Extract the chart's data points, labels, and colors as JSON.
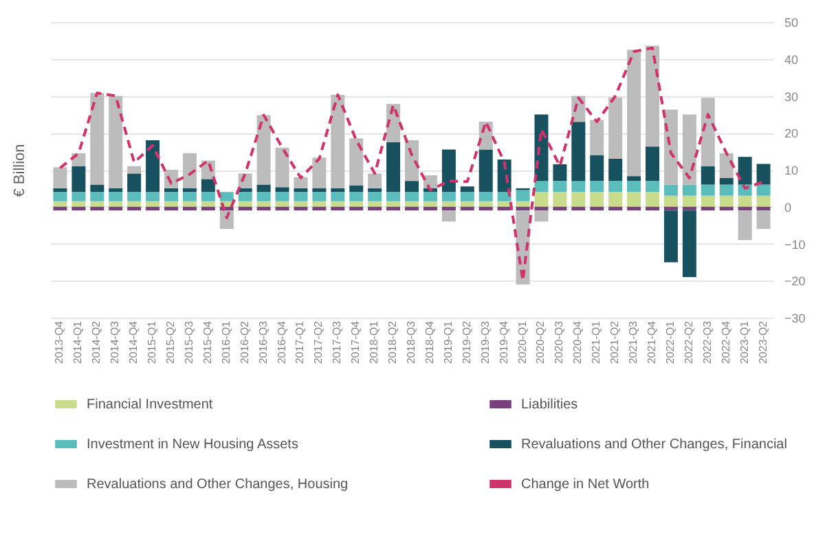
{
  "chart_data": {
    "type": "bar",
    "stacked": true,
    "ylabel": "€ Billion",
    "categories": [
      "2013-Q4",
      "2014-Q1",
      "2014-Q2",
      "2014-Q3",
      "2014-Q4",
      "2015-Q1",
      "2015-Q2",
      "2015-Q3",
      "2015-Q4",
      "2016-Q1",
      "2016-Q2",
      "2016-Q3",
      "2016-Q4",
      "2017-Q1",
      "2017-Q2",
      "2017-Q3",
      "2017-Q4",
      "2018-Q1",
      "2018-Q2",
      "2018-Q3",
      "2018-Q4",
      "2019-Q1",
      "2019-Q2",
      "2019-Q3",
      "2019-Q4",
      "2020-Q1",
      "2020-Q2",
      "2020-Q3",
      "2020-Q4",
      "2021-Q1",
      "2021-Q2",
      "2021-Q3",
      "2021-Q4",
      "2022-Q1",
      "2022-Q2",
      "2022-Q3",
      "2022-Q4",
      "2023-Q1",
      "2023-Q2"
    ],
    "series": [
      {
        "name": "Financial Investment",
        "color": "#c9dc8c",
        "values": [
          1.5,
          1.5,
          1.5,
          1.5,
          1.5,
          1.5,
          1.5,
          1.5,
          1.5,
          1.5,
          1.5,
          1.5,
          1.5,
          1.5,
          1.5,
          1.5,
          1.5,
          1.5,
          1.5,
          1.5,
          1.5,
          1.5,
          1.5,
          1.5,
          1.5,
          1.5,
          4,
          4,
          4,
          4,
          4,
          4,
          4,
          3,
          3,
          3,
          3,
          3,
          3
        ]
      },
      {
        "name": "Liabilities",
        "color": "#7a3f7e",
        "values": [
          -1,
          -1,
          -1,
          -1,
          -1,
          -1,
          -1,
          -1,
          -1,
          -1,
          -1,
          -1,
          -1,
          -1,
          -1,
          -1,
          -1,
          -1,
          -1,
          -1,
          -1,
          -1,
          -1,
          -1,
          -1,
          -1,
          -1,
          -1,
          -1,
          -1,
          -1,
          -1,
          -1,
          -1,
          -1,
          -1,
          -1,
          -1,
          -1
        ]
      },
      {
        "name": "Investment in New Housing Assets",
        "color": "#5bbcbc",
        "values": [
          2.5,
          2.5,
          2.5,
          2.5,
          2.5,
          2.5,
          2.5,
          2.5,
          2.5,
          2.5,
          2.5,
          2.5,
          2.5,
          2.5,
          2.5,
          2.5,
          2.5,
          2.5,
          2.5,
          2.5,
          2.5,
          2.5,
          2.5,
          2.5,
          2.5,
          3,
          3,
          3,
          3,
          3,
          3,
          3,
          3,
          3,
          3,
          3,
          3,
          3,
          3
        ]
      },
      {
        "name": "Revaluations and Other Changes, Financial",
        "color": "#17505f",
        "values": [
          1,
          7,
          2,
          1,
          5,
          14,
          1,
          1,
          3.5,
          0,
          1,
          2,
          1.3,
          1,
          1,
          1,
          1.8,
          1,
          13.5,
          3,
          1,
          11.5,
          1.5,
          11.5,
          8.8,
          0.5,
          18,
          4.5,
          16,
          7,
          6,
          1.3,
          9.3,
          -14,
          -18,
          5,
          1.8,
          7.5,
          5.6
        ]
      },
      {
        "name": "Revaluations and Other Changes, Housing",
        "color": "#bcbcbc",
        "values": [
          5.7,
          3.5,
          24.8,
          25,
          2,
          null,
          5,
          9.5,
          5,
          -5,
          4,
          18.8,
          10.7,
          3,
          8.3,
          25.3,
          12.7,
          4,
          10.3,
          11,
          3.5,
          -3,
          null,
          7.5,
          null,
          -20,
          -3,
          null,
          7,
          9.5,
          16.6,
          34.2,
          27.3,
          20.3,
          19,
          18.5,
          6.7,
          -8,
          -5
        ]
      },
      {
        "name": "Change in Net Worth",
        "type": "line",
        "line_style": "dashed",
        "color": "#d0336c",
        "values": [
          10.5,
          14.5,
          30.8,
          30,
          12,
          16.6,
          6.3,
          8.8,
          12.5,
          -3,
          9,
          24.8,
          16,
          7.8,
          13,
          30.3,
          18,
          9,
          27.5,
          14,
          4.5,
          7,
          6.8,
          23,
          12,
          -20,
          21,
          11,
          29.5,
          23,
          30,
          42,
          43,
          14.5,
          7.8,
          25,
          14.5,
          5,
          6.8
        ]
      }
    ],
    "ylim": [
      -30,
      50
    ],
    "yticks": [
      -30,
      -20,
      -10,
      0,
      10,
      20,
      30,
      40,
      50
    ],
    "grid": "y",
    "legend": "bottom"
  }
}
